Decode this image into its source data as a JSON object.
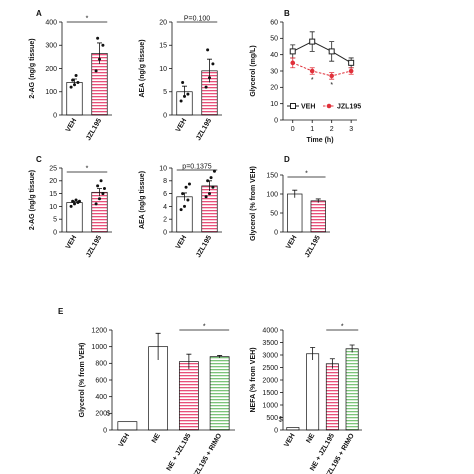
{
  "chart_data": [
    {
      "type": "bar",
      "panel": "A",
      "ylabel": "2-AG (ng/g tissue)",
      "categories": [
        "VEH",
        "JZL195"
      ],
      "values": [
        140,
        265
      ],
      "errors": [
        15,
        45
      ],
      "points": [
        [
          120,
          130,
          140,
          150,
          170
        ],
        [
          190,
          240,
          300,
          330
        ]
      ],
      "colors": [
        "#ffffff",
        "#e8507a"
      ],
      "ylim": [
        0,
        400
      ],
      "yticks": [
        0,
        100,
        200,
        300,
        400
      ],
      "annotations": [
        "*"
      ]
    },
    {
      "type": "bar",
      "ylabel": "AEA (ng/g tissue)",
      "categories": [
        "VEH",
        "JZL195"
      ],
      "values": [
        5,
        9.5
      ],
      "errors": [
        1.2,
        2.5
      ],
      "points": [
        [
          3,
          4,
          4.5,
          7
        ],
        [
          6,
          8,
          11,
          14
        ]
      ],
      "colors": [
        "#ffffff",
        "#e8507a"
      ],
      "ylim": [
        0,
        20
      ],
      "yticks": [
        0,
        5,
        10,
        15,
        20
      ],
      "annotations": [
        "P=0.100"
      ]
    },
    {
      "type": "line",
      "panel": "B",
      "ylabel": "Glycerol (mg/L)",
      "xlabel": "Time (h)",
      "x": [
        0,
        1,
        2,
        3
      ],
      "series": [
        {
          "name": "VEH",
          "color": "#222222",
          "marker": "square",
          "dashed": false,
          "values": [
            42,
            48,
            42,
            35
          ],
          "errors": [
            4,
            6,
            6,
            3
          ]
        },
        {
          "name": "JZL195",
          "color": "#e0303a",
          "marker": "circle",
          "dashed": true,
          "values": [
            35,
            30,
            27,
            30
          ],
          "errors": [
            3,
            2,
            2,
            2
          ]
        }
      ],
      "xlim": [
        -0.5,
        3.3
      ],
      "xticks": [
        0,
        1,
        2,
        3
      ],
      "ylim": [
        0,
        60
      ],
      "yticks": [
        0,
        10,
        20,
        30,
        40,
        50,
        60
      ],
      "annotations": [
        "*",
        "*"
      ]
    },
    {
      "type": "bar",
      "panel": "C",
      "ylabel": "2-AG (ng/g tissue)",
      "categories": [
        "VEH",
        "JZL195"
      ],
      "values": [
        11.5,
        15.5
      ],
      "errors": [
        0.5,
        1.5
      ],
      "points": [
        [
          10,
          11,
          11.5,
          12,
          12.5,
          12
        ],
        [
          11,
          13,
          15,
          18,
          20,
          17
        ]
      ],
      "colors": [
        "#ffffff",
        "#e8507a"
      ],
      "ylim": [
        0,
        25
      ],
      "yticks": [
        0,
        5,
        10,
        15,
        20,
        25
      ],
      "annotations": [
        "*"
      ]
    },
    {
      "type": "bar",
      "ylabel": "AEA (ng/g tissue)",
      "categories": [
        "VEH",
        "JZL195"
      ],
      "values": [
        5.5,
        7.2
      ],
      "errors": [
        0.6,
        0.8
      ],
      "points": [
        [
          3.5,
          4,
          5,
          6,
          7,
          7.5
        ],
        [
          5.5,
          6,
          7,
          8,
          8.5,
          9.5
        ]
      ],
      "colors": [
        "#ffffff",
        "#e8507a"
      ],
      "ylim": [
        0,
        10
      ],
      "yticks": [
        0,
        2,
        4,
        6,
        8,
        10
      ],
      "annotations": [
        "p=0.1375"
      ]
    },
    {
      "type": "bar",
      "panel": "D",
      "ylabel": "Glycerol (% from VEH)",
      "categories": [
        "VEH",
        "JZL195"
      ],
      "values": [
        100,
        82
      ],
      "errors": [
        10,
        5
      ],
      "colors": [
        "#ffffff",
        "#e8507a"
      ],
      "ylim": [
        0,
        150
      ],
      "yticks": [
        0,
        50,
        100,
        150
      ],
      "annotations": [
        "*"
      ]
    },
    {
      "type": "bar",
      "panel": "E",
      "ylabel": "Glycerol (% from VEH)",
      "categories": [
        "VEH",
        "NE",
        "NE + JZL195",
        "NE + JZL195 + RIMO"
      ],
      "values": [
        100,
        1000,
        820,
        880
      ],
      "errors": [
        null,
        160,
        90,
        15
      ],
      "colors": [
        "#ffffff",
        "#ffffff",
        "#e8507a",
        "#7cc47a"
      ],
      "ylim": [
        0,
        1200
      ],
      "yticks": [
        0,
        200,
        400,
        600,
        800,
        1000,
        1200
      ],
      "annotations": [
        "$",
        "*"
      ]
    },
    {
      "type": "bar",
      "ylabel": "NEFA (% from VEH)",
      "categories": [
        "VEH",
        "NE",
        "NE + JZL195",
        "NE + JZL195 + RIMO"
      ],
      "values": [
        100,
        3050,
        2650,
        3250
      ],
      "errors": [
        null,
        250,
        200,
        150
      ],
      "colors": [
        "#ffffff",
        "#ffffff",
        "#e8507a",
        "#7cc47a"
      ],
      "ylim": [
        0,
        4000
      ],
      "yticks": [
        0,
        500,
        1000,
        1500,
        2000,
        2500,
        3000,
        3500,
        4000
      ],
      "annotations": [
        "$",
        "*"
      ]
    }
  ]
}
